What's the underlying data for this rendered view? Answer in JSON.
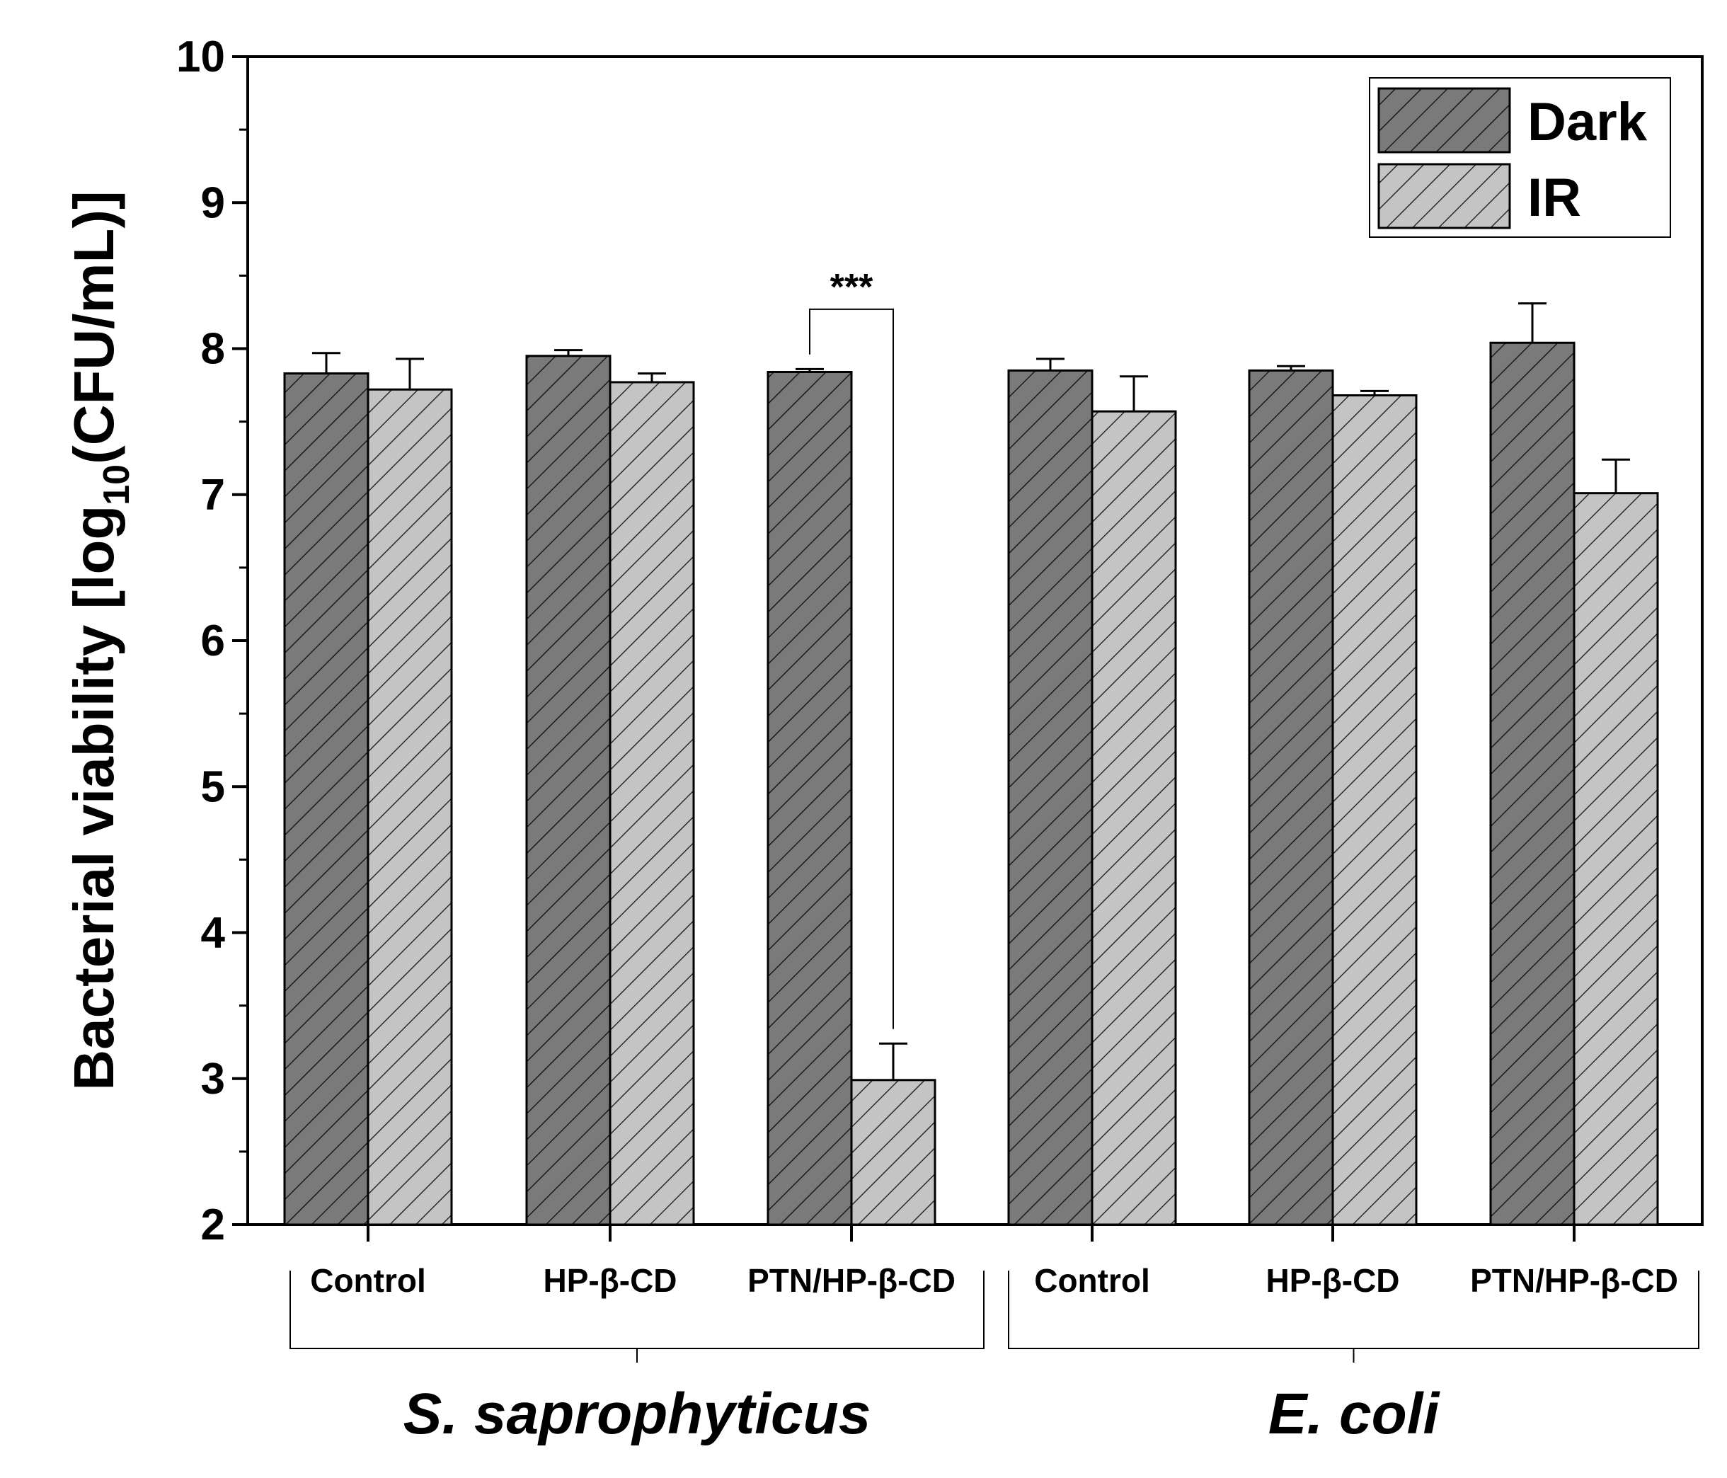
{
  "chart_data": {
    "type": "bar",
    "ylabel_parts": [
      "Bacterial viability [log",
      "10",
      "(CFU/mL)]"
    ],
    "ylim": [
      2,
      10
    ],
    "yticks": [
      "2",
      "3",
      "4",
      "5",
      "6",
      "7",
      "8",
      "9",
      "10"
    ],
    "categories": [
      "Control",
      "HP-β-CD",
      "PTN/HP-β-CD",
      "Control",
      "HP-β-CD",
      "PTN/HP-β-CD"
    ],
    "groups": [
      {
        "name": "S. saprophyticus",
        "category_indices": [
          0,
          1,
          2
        ]
      },
      {
        "name": "E. coli",
        "category_indices": [
          3,
          4,
          5
        ]
      }
    ],
    "series": [
      {
        "name": "Dark",
        "color": "#7a7a7a",
        "values": [
          7.83,
          7.95,
          7.84,
          7.85,
          7.85,
          8.04
        ],
        "errors": [
          0.14,
          0.04,
          0.02,
          0.08,
          0.03,
          0.27
        ]
      },
      {
        "name": "IR",
        "color": "#c4c4c4",
        "values": [
          7.72,
          7.77,
          2.99,
          7.57,
          7.68,
          7.01
        ],
        "errors": [
          0.21,
          0.06,
          0.25,
          0.24,
          0.03,
          0.23
        ]
      }
    ],
    "annotations": [
      {
        "text": "***",
        "category_index": 2,
        "between": [
          "Dark",
          "IR"
        ]
      }
    ],
    "legend": {
      "position": "top-right"
    }
  }
}
